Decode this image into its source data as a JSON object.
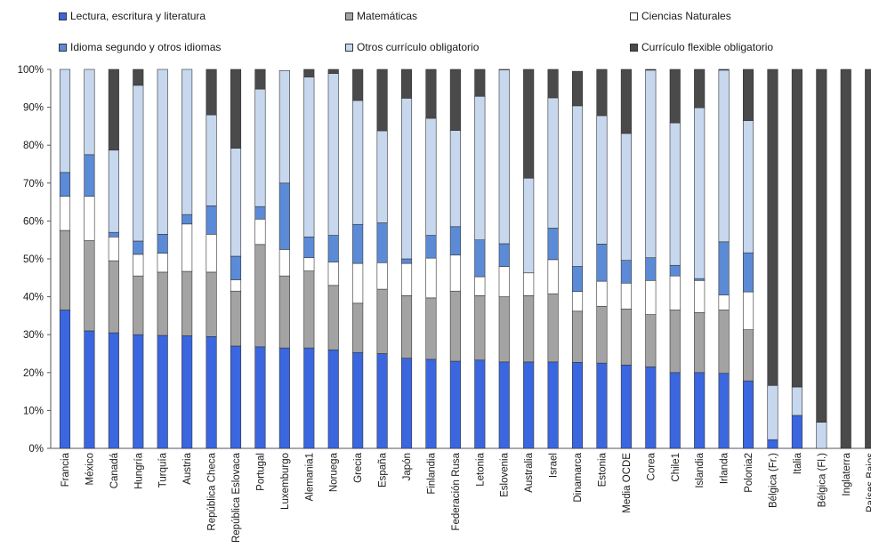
{
  "chart_data": {
    "type": "bar",
    "stacked": true,
    "categories": [
      "Francia",
      "México",
      "Canadá",
      "Hungría",
      "Turquía",
      "Austria",
      "República Checa",
      "República Eslovaca",
      "Portugal",
      "Luxemburgo",
      "Alemania1",
      "Noruega",
      "Grecia",
      "España",
      "Japón",
      "Finlandia",
      "Federación Rusa",
      "Letonia",
      "Eslovenia",
      "Australia",
      "Israel",
      "Dinamarca",
      "Estonia",
      "Media OCDE",
      "Corea",
      "Chile1",
      "Islandia",
      "Irlanda",
      "Polonia2",
      "Bélgica (Fr.)",
      "Italia",
      "Bélgica (Fl.)",
      "Inglaterra",
      "Países Bajos"
    ],
    "series": [
      {
        "name": "Lectura, escritura y literatura",
        "color": "#3a66e0",
        "values": [
          36.5,
          31,
          30.5,
          30,
          29.8,
          29.7,
          29.5,
          27,
          26.8,
          26.5,
          26.5,
          26,
          25.3,
          25,
          23.8,
          23.5,
          23,
          23.3,
          22.8,
          22.8,
          22.8,
          22.7,
          22.5,
          22,
          21.5,
          20,
          20,
          19.8,
          17.8,
          2.3,
          8.7,
          0,
          0,
          0
        ]
      },
      {
        "name": "Matemáticas",
        "color": "#a3a3a3",
        "values": [
          21,
          23.8,
          19,
          15.5,
          16.7,
          17,
          17,
          14.5,
          27,
          19,
          20.3,
          17,
          13,
          17,
          16.5,
          16.2,
          18.5,
          17,
          17.2,
          17.5,
          18,
          13.5,
          15,
          14.8,
          13.8,
          16.5,
          15.8,
          16.7,
          13.5,
          0,
          0,
          0,
          0,
          0
        ]
      },
      {
        "name": "Ciencias Naturales",
        "color": "#ffffff",
        "values": [
          9,
          11.7,
          6.3,
          5.7,
          5,
          12.5,
          10,
          3,
          6.7,
          7,
          3.5,
          6.2,
          10.5,
          7,
          8.5,
          10.5,
          9.5,
          5,
          8,
          6,
          9,
          5.2,
          6.6,
          6.8,
          9,
          9,
          8.5,
          4,
          10,
          0,
          0,
          0,
          0,
          0
        ]
      },
      {
        "name": "Idioma segundo y otros idiomas",
        "color": "#5b8bd6",
        "values": [
          6.3,
          11,
          1.2,
          3.5,
          5,
          2.5,
          7.5,
          6.2,
          3.3,
          17.5,
          5.5,
          7,
          10.3,
          10.5,
          1.2,
          6,
          7.5,
          9.7,
          6,
          0,
          8.3,
          6.6,
          9.8,
          6,
          6,
          2.8,
          0.5,
          14,
          10.3,
          0,
          0,
          0,
          0,
          0
        ]
      },
      {
        "name": "Otros currículo obligatorio",
        "color": "#c6d7ee",
        "values": [
          27.2,
          22.5,
          21.7,
          41.1,
          43.5,
          38.3,
          24,
          28.5,
          31,
          29.7,
          42.2,
          42.7,
          32.7,
          24.3,
          42.4,
          30.9,
          25.4,
          37.9,
          45.9,
          25,
          34.4,
          42.4,
          33.9,
          33.5,
          49.5,
          37.6,
          45.1,
          45.3,
          34.9,
          14.3,
          7.5,
          6.9,
          0,
          0
        ]
      },
      {
        "name": "Currículo flexible obligatorio",
        "color": "#4a4a4a",
        "values": [
          0,
          0,
          21.3,
          4.2,
          0,
          0,
          12,
          20.8,
          5.2,
          0,
          2,
          1.1,
          8.2,
          16.2,
          7.6,
          12.9,
          16.1,
          7.1,
          0.1,
          28.7,
          7.5,
          9.1,
          12.2,
          16.9,
          0.2,
          14.1,
          10.1,
          0.2,
          13.5,
          83.4,
          83.8,
          93.1,
          100,
          100
        ]
      }
    ],
    "ylim": [
      0,
      100
    ],
    "yticks": [
      "0%",
      "10%",
      "20%",
      "30%",
      "40%",
      "50%",
      "60%",
      "70%",
      "80%",
      "90%",
      "100%"
    ],
    "legend_position": "top",
    "grid": false
  }
}
